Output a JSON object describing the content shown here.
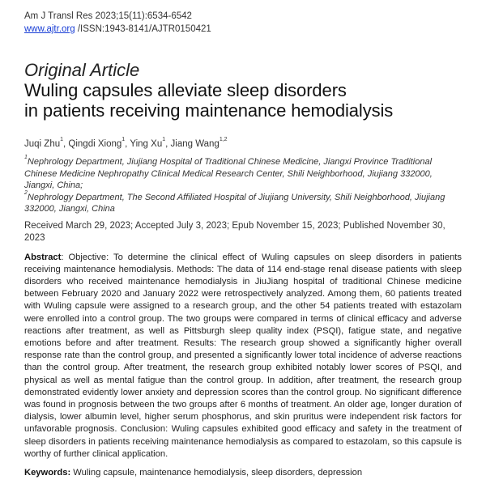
{
  "header": {
    "citation": "Am J Transl Res 2023;15(11):6534-6542",
    "url": "www.ajtr.org",
    "issn": " /ISSN:1943-8141/AJTR0150421"
  },
  "article_type": "Original Article",
  "title_lines": [
    "Wuling capsules alleviate sleep disorders",
    "in patients receiving maintenance hemodialysis"
  ],
  "authors": [
    {
      "name": "Juqi Zhu",
      "sup": "1",
      "sep": ", "
    },
    {
      "name": "Qingdi Xiong",
      "sup": "1",
      "sep": ", "
    },
    {
      "name": "Ying Xu",
      "sup": "1",
      "sep": ", "
    },
    {
      "name": "Jiang Wang",
      "sup": "1,2",
      "sep": ""
    }
  ],
  "affiliations": [
    {
      "sup": "1",
      "text": "Nephrology Department, Jiujiang Hospital of Traditional Chinese Medicine, Jiangxi Province Traditional Chinese Medicine Nephropathy Clinical Medical Research Center, Shili Neighborhood, Jiujiang 332000, Jiangxi, China;"
    },
    {
      "sup": "2",
      "text": "Nephrology Department, The Second Affiliated Hospital of Jiujiang University, Shili Neighborhood, Jiujiang 332000, Jiangxi, China"
    }
  ],
  "dates": "Received March 29, 2023; Accepted July 3, 2023; Epub November 15, 2023; Published November 30, 2023",
  "abstract": {
    "label": "Abstract",
    "text": ": Objective: To determine the clinical effect of Wuling capsules on sleep disorders in patients receiving maintenance hemodialysis. Methods: The data of 114 end-stage renal disease patients with sleep disorders who received maintenance hemodialysis in JiuJiang hospital of traditional Chinese medicine between February 2020 and January 2022 were retrospectively analyzed. Among them, 60 patients treated with Wuling capsule were as­signed to a research group, and the other 54 patients treated with estazolam were enrolled into a control group. The two groups were compared in terms of clinical efficacy and adverse reactions after treatment, as well as Pittsburgh sleep quality index (PSQI), fatigue state, and negative emotions before and after treatment. Results: The research group showed a significantly higher overall response rate than the control group, and presented a significantly lower total incidence of adverse reactions than the control group. After treatment, the research group exhibited notably lower scores of PSQI, and physical as well as mental fatigue than the control group. In addition, after treatment, the research group demonstrated evidently lower anxiety and depression scores than the control group. No significant difference was found in prognosis between the two groups after 6 months of treatment. An older age, longer dura­tion of dialysis, lower albumin level, higher serum phosphorus, and skin pruritus were independent risk factors for unfavorable prognosis. Conclusion: Wuling capsules exhibited good efficacy and safety in the treatment of sleep disorders in patients receiving maintenance hemodialysis as compared to estazolam, so this capsule is worthy of further clinical application."
  },
  "keywords": {
    "label": "Keywords:",
    "text": " Wuling capsule, maintenance hemodialysis, sleep disorders, depression"
  },
  "colors": {
    "link": "#1a3fd6"
  }
}
